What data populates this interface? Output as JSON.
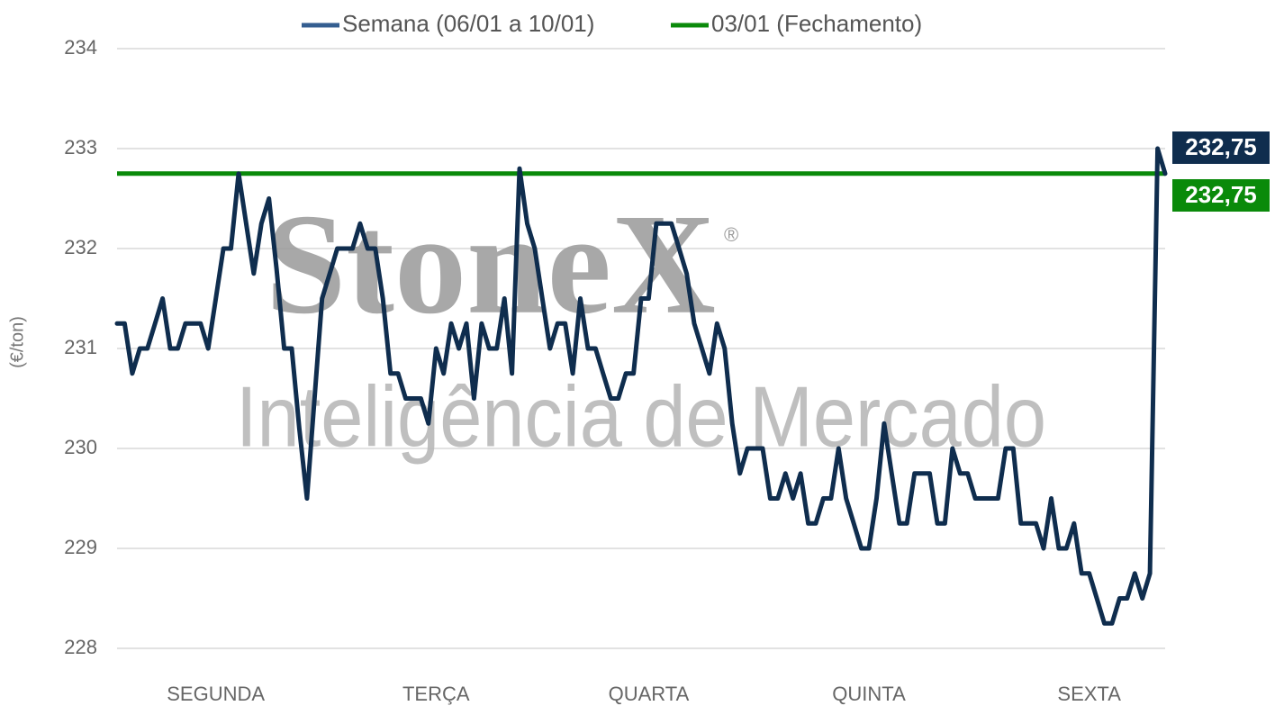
{
  "chart_data": {
    "type": "line",
    "y_label": "(€/ton)",
    "watermark": {
      "logo": "StoneX",
      "registered": "®",
      "tagline": "Inteligência de Mercado"
    },
    "ylim": [
      228,
      234
    ],
    "yticks": [
      228,
      229,
      230,
      231,
      232,
      233,
      234
    ],
    "grid": true,
    "legend": "top",
    "categories": [
      null,
      null,
      null,
      null,
      null,
      null,
      null,
      null,
      null,
      null,
      null,
      null,
      null,
      "SEGUNDA",
      null,
      null,
      null,
      null,
      null,
      null,
      null,
      null,
      null,
      null,
      null,
      null,
      null,
      null,
      null,
      null,
      null,
      null,
      null,
      null,
      null,
      null,
      null,
      null,
      null,
      null,
      null,
      null,
      "TERÇA",
      null,
      null,
      null,
      null,
      null,
      null,
      null,
      null,
      null,
      null,
      null,
      null,
      null,
      null,
      null,
      null,
      null,
      null,
      null,
      null,
      null,
      null,
      null,
      null,
      null,
      null,
      null,
      "QUARTA",
      null,
      null,
      null,
      null,
      null,
      null,
      null,
      null,
      null,
      null,
      null,
      null,
      null,
      null,
      null,
      null,
      null,
      null,
      null,
      null,
      null,
      null,
      null,
      null,
      null,
      null,
      null,
      null,
      "QUINTA",
      null,
      null,
      null,
      null,
      null,
      null,
      null,
      null,
      null,
      null,
      null,
      null,
      null,
      null,
      null,
      null,
      null,
      null,
      null,
      null,
      null,
      null,
      null,
      null,
      null,
      null,
      null,
      null,
      "SEXTA",
      null,
      null,
      null,
      null,
      null,
      null,
      null,
      null,
      null,
      null
    ],
    "series": [
      {
        "name": "Semana (06/01 a 10/01)",
        "color": "#0f2d4e",
        "legend_color": "#345e90",
        "values": [
          231.25,
          231.25,
          230.75,
          231,
          231,
          231.25,
          231.5,
          231,
          231,
          231.25,
          231.25,
          231.25,
          231,
          231.5,
          232,
          232,
          232.75,
          232.25,
          231.75,
          232.25,
          232.5,
          231.8,
          231,
          231,
          230.2,
          229.5,
          230.5,
          231.5,
          231.75,
          232,
          232,
          232,
          232.25,
          232,
          232,
          231.5,
          230.75,
          230.75,
          230.5,
          230.5,
          230.5,
          230.25,
          231,
          230.75,
          231.25,
          231,
          231.25,
          230.5,
          231.25,
          231,
          231,
          231.5,
          230.75,
          232.8,
          232.25,
          232,
          231.5,
          231,
          231.25,
          231.25,
          230.75,
          231.5,
          231,
          231,
          230.75,
          230.5,
          230.5,
          230.75,
          230.75,
          231.5,
          231.5,
          232.25,
          232.25,
          232.25,
          232,
          231.75,
          231.25,
          231,
          230.75,
          231.25,
          231,
          230.25,
          229.75,
          230,
          230,
          230,
          229.5,
          229.5,
          229.75,
          229.5,
          229.75,
          229.25,
          229.25,
          229.5,
          229.5,
          230,
          229.5,
          229.25,
          229,
          229,
          229.5,
          230.25,
          229.75,
          229.25,
          229.25,
          229.75,
          229.75,
          229.75,
          229.25,
          229.25,
          230,
          229.75,
          229.75,
          229.5,
          229.5,
          229.5,
          229.5,
          230,
          230,
          229.25,
          229.25,
          229.25,
          229,
          229.5,
          229,
          229,
          229.25,
          228.75,
          228.75,
          228.5,
          228.25,
          228.25,
          228.5,
          228.5,
          228.75,
          228.5,
          228.75,
          233,
          232.75
        ],
        "value_labels": [
          null,
          null,
          null,
          null,
          null,
          null,
          null,
          null,
          null,
          null,
          null,
          null,
          null,
          null,
          null,
          null,
          null,
          null,
          null,
          null,
          null,
          null,
          null,
          null,
          null,
          null,
          null,
          null,
          null,
          null,
          null,
          null,
          null,
          null,
          null,
          null,
          null,
          null,
          null,
          null,
          null,
          null,
          null,
          null,
          null,
          null,
          null,
          null,
          null,
          null,
          null,
          null,
          null,
          null,
          null,
          null,
          null,
          null,
          null,
          null,
          null,
          null,
          null,
          null,
          null,
          null,
          null,
          null,
          null,
          null,
          null,
          null,
          null,
          null,
          null,
          null,
          null,
          null,
          null,
          null,
          null,
          null,
          null,
          null,
          null,
          null,
          null,
          null,
          null,
          null,
          null,
          null,
          null,
          null,
          null,
          null,
          null,
          null,
          null,
          null,
          null,
          null,
          null,
          null,
          null,
          null,
          null,
          null,
          null,
          null,
          null,
          null,
          null,
          null,
          null,
          null,
          null,
          null,
          null,
          null,
          null,
          null,
          null,
          null,
          null,
          null,
          null,
          null,
          null,
          null,
          null,
          null,
          null,
          null,
          null,
          null,
          null,
          null,
          "232,75"
        ]
      }
    ],
    "reference_line": {
      "name": "03/01 (Fechamento)",
      "color": "#0a8a0a",
      "value": 232.75,
      "value_label": "232,75"
    }
  }
}
